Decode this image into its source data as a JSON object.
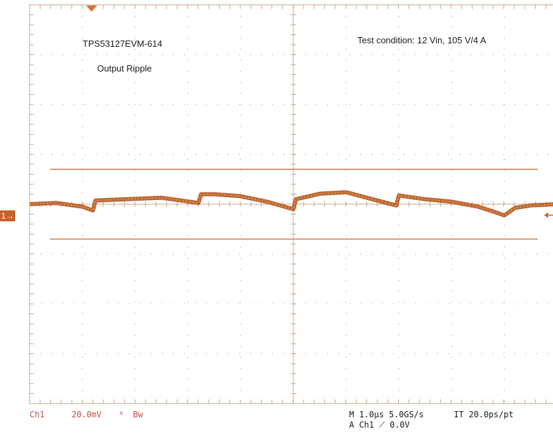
{
  "colors": {
    "grid": "#c8a88a",
    "trace": "#b5572a",
    "trace_highlight": "#e0b020",
    "cursor": "#c8622a",
    "accent_text": "#c0504d"
  },
  "annotations": {
    "board": "TPS53127EVM-614",
    "measurement": "Output Ripple",
    "test_condition": "Test condition: 12 Vin, 105 V/4 A"
  },
  "channel_marker": "1",
  "readouts": {
    "channel": "Ch1",
    "scale": "20.0mV",
    "bw_symbol": "ᵇ",
    "bw": "Bw",
    "timebase": "M 1.0µs 5.0GS/s",
    "interp": "IT 20.0ps/pt",
    "trigger": "A Ch1 ⟋ 0.0V"
  },
  "chart_data": {
    "type": "line",
    "x_unit": "µs",
    "y_unit": "mV",
    "x_range": [
      0,
      10
    ],
    "y_range": [
      -80,
      80
    ],
    "grid": true,
    "x_divisions": 10,
    "y_divisions": 8,
    "reference_lines_mV": [
      14,
      -14
    ],
    "series": [
      {
        "x": [
          0,
          0.5,
          1.0,
          1.2,
          1.25,
          1.6,
          2.5,
          3.2,
          3.25,
          3.5,
          4.0,
          4.5,
          5.0,
          5.05,
          5.5,
          6.0,
          6.5,
          6.95,
          7.0,
          7.5,
          8.0,
          8.5,
          8.8,
          9.0,
          9.2,
          9.5,
          10.0
        ],
        "y": [
          0,
          0.5,
          -1.0,
          -2.5,
          1.5,
          1.8,
          2.6,
          0.5,
          4.0,
          4.0,
          3.2,
          1.0,
          -2.0,
          2.0,
          4.2,
          4.8,
          2.0,
          -0.5,
          3.5,
          2.0,
          1.0,
          -1.0,
          -3.0,
          -4.5,
          -1.5,
          -0.5,
          0.0
        ]
      }
    ]
  }
}
